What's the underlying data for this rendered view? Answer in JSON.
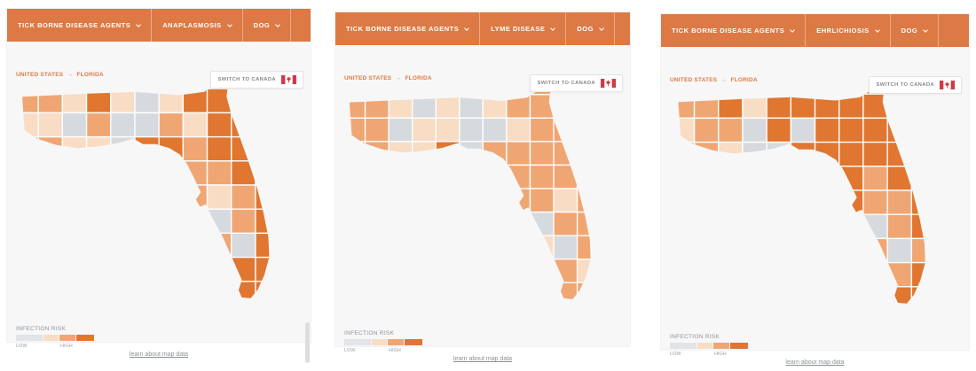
{
  "colors": {
    "header_orange": "#dd7944",
    "flag_red": "#d03a45",
    "breadcrumb_orange": "#dc7b43",
    "panel_background": "#f7f7f8"
  },
  "palette": {
    "d": "#e0762f",
    "m": "#f0a673",
    "l": "#f8dcc4",
    "g": "#d6dade"
  },
  "panels": [
    {
      "menus": {
        "agents": "TICK BORNE DISEASE AGENTS",
        "disease": "ANAPLASMOSIS",
        "species": "DOG"
      },
      "breadcrumb": {
        "country": "UNITED STATES",
        "arrow": "→",
        "region": "FLORIDA"
      },
      "switch_label": "SWITCH TO CANADA",
      "legend": {
        "title": "INFECTION RISK",
        "low": "LOW",
        "high": "HIGH"
      },
      "link": "learn about map data",
      "map_rows": [
        ".......md...",
        "mmldlgldd...",
        "llgmggmldd..",
        "mmllgddmddd.",
        "......dmmdd.",
        ".......mlmd.",
        ".......dgmd.",
        "........mgd.",
        ".........dd.",
        ".........dd."
      ]
    },
    {
      "menus": {
        "agents": "TICK BORNE DISEASE AGENTS",
        "disease": "LYME DISEASE",
        "species": "DOG"
      },
      "breadcrumb": {
        "country": "UNITED STATES",
        "arrow": "→",
        "region": "FLORIDA"
      },
      "switch_label": "SWITCH TO CANADA",
      "legend": {
        "title": "INFECTION RISK",
        "low": "LOW",
        "high": "HIGH"
      },
      "link": "learn about map data",
      "map_rows": [
        ".......mm...",
        "mmlglglmm...",
        "mmgllgglmm..",
        "mmlldgmmmmm.",
        "......mmmmm.",
        ".......mmlm.",
        ".......mgmm.",
        "........lgm.",
        ".........ml.",
        ".........mm."
      ]
    },
    {
      "menus": {
        "agents": "TICK BORNE DISEASE AGENTS",
        "disease": "EHRLICHIOSIS",
        "species": "DOG"
      },
      "breadcrumb": {
        "country": "UNITED STATES",
        "arrow": "→",
        "region": "FLORIDA"
      },
      "switch_label": "SWITCH TO CANADA",
      "legend": {
        "title": "INFECTION RISK",
        "low": "LOW",
        "high": "HIGH"
      },
      "link": "learn about map data",
      "map_rows": [
        ".......dd...",
        "mmdlddddd...",
        "lmmgdgdddd..",
        "mmlggdddddd.",
        "......ddmdd.",
        ".......dmmd.",
        ".......mgmd.",
        "........mgm.",
        ".........md.",
        ".........dd."
      ]
    }
  ]
}
